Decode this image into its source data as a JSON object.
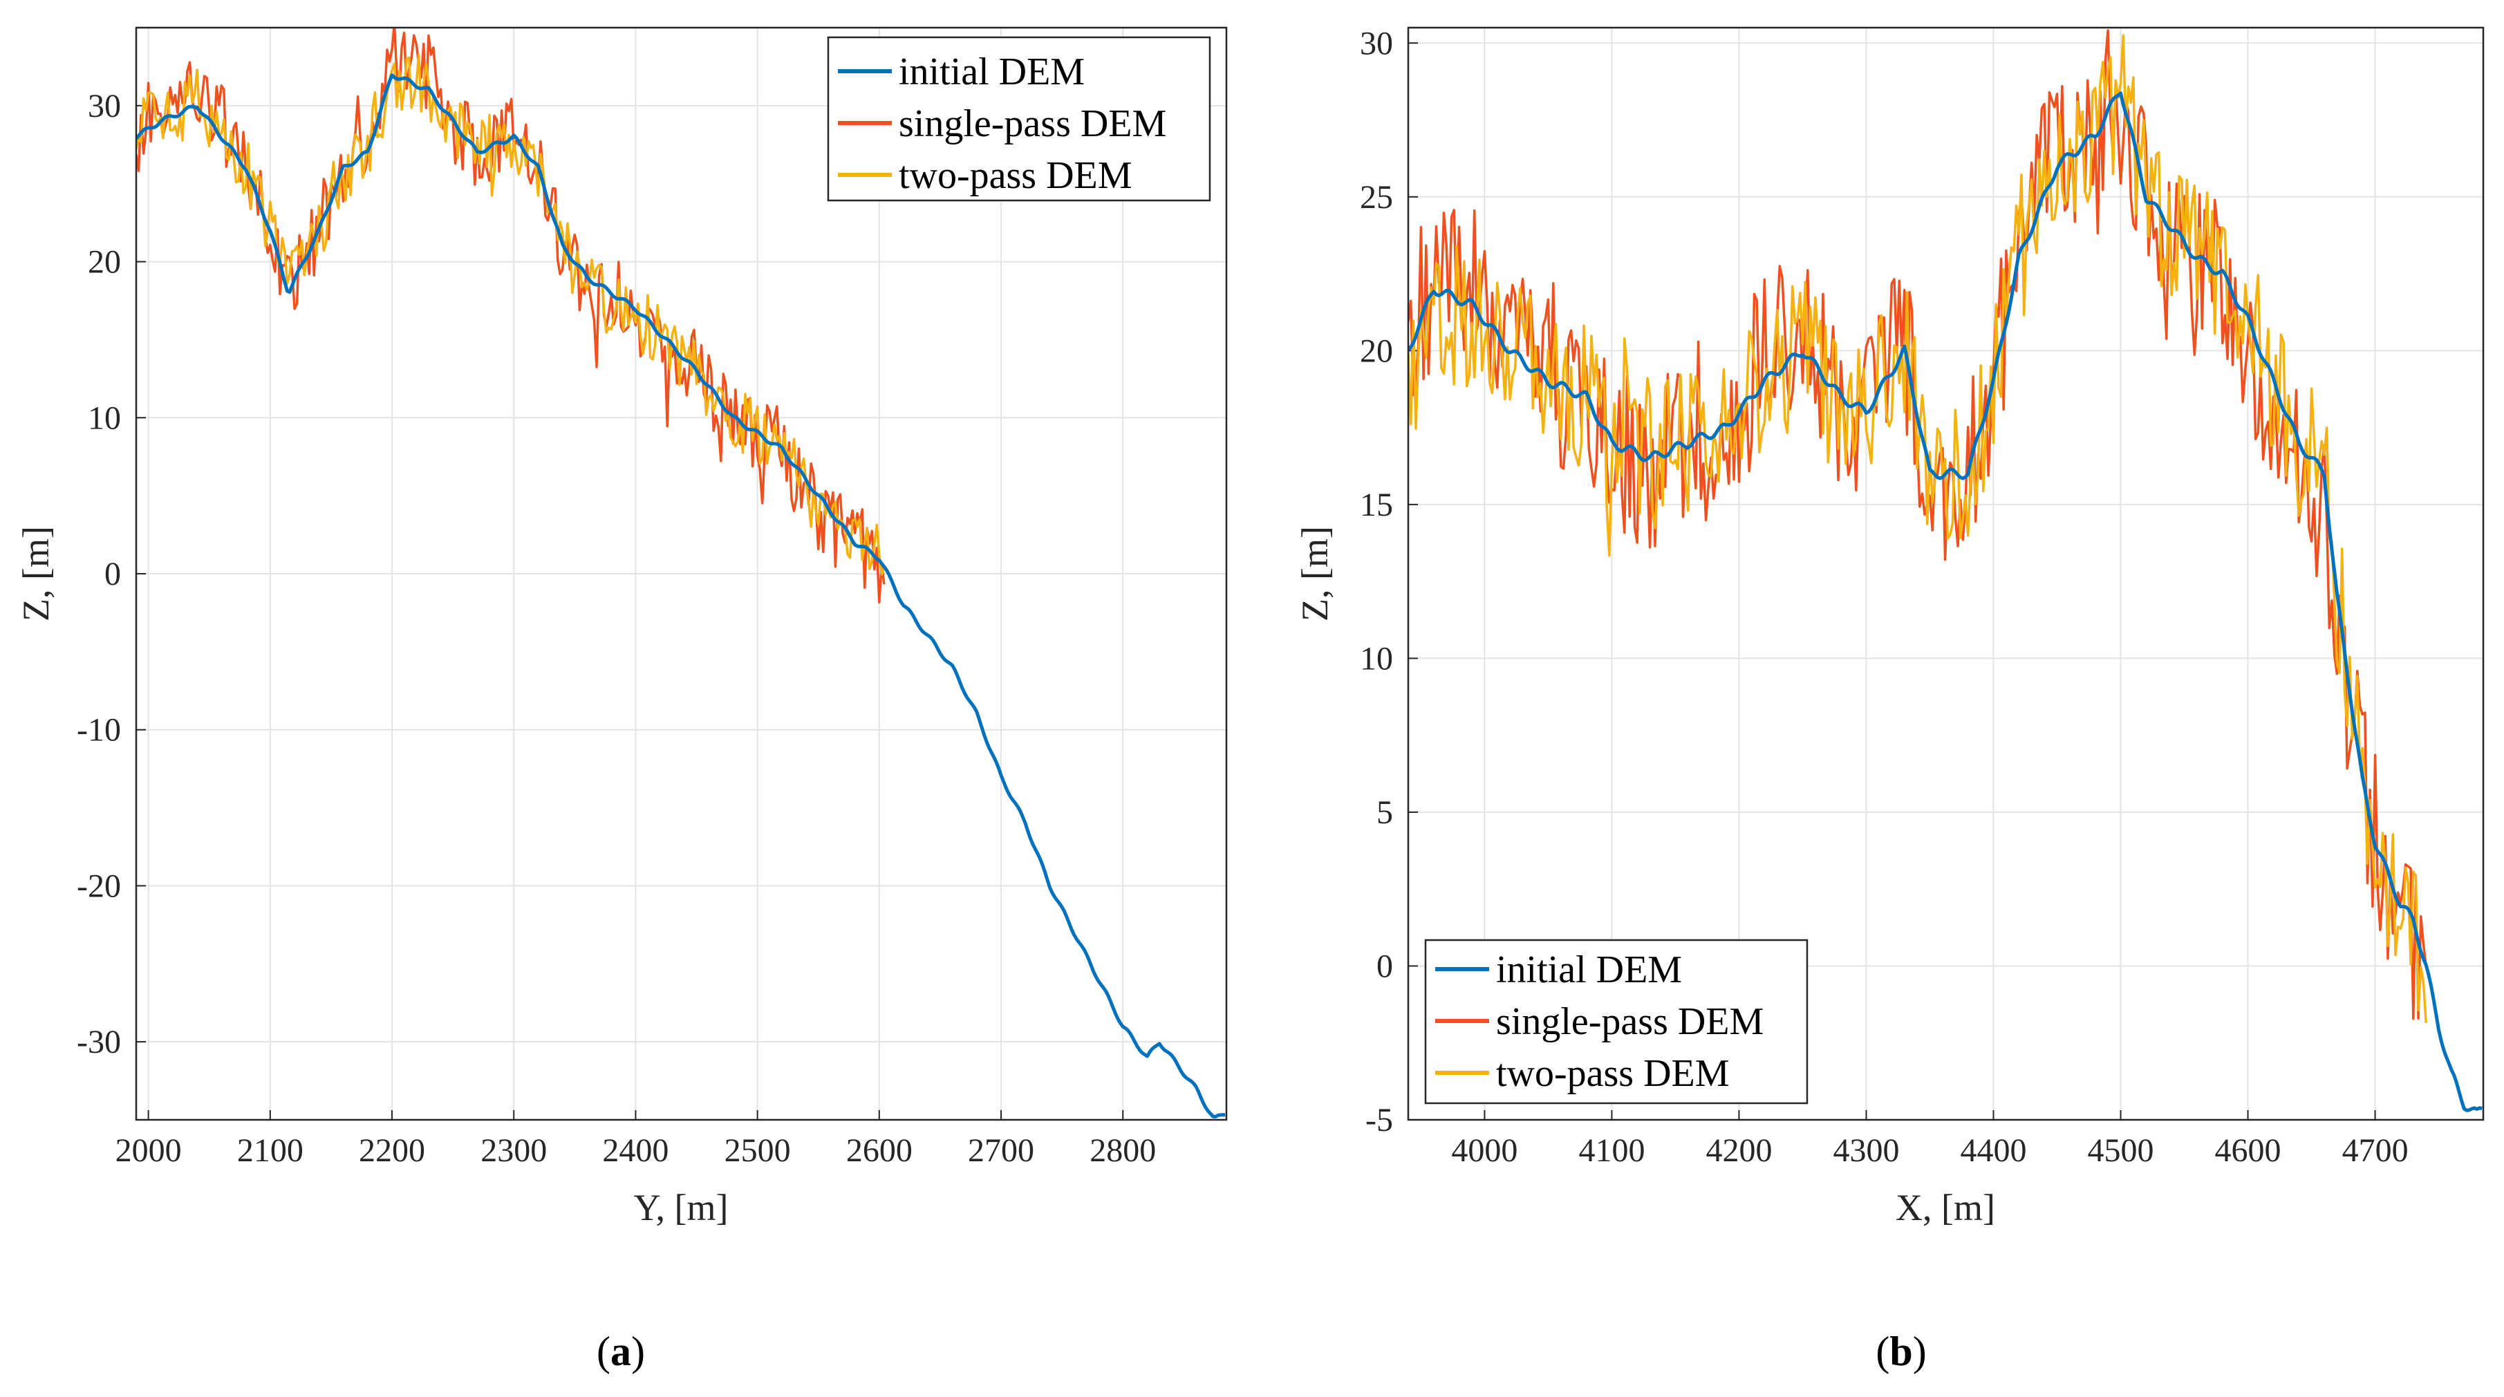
{
  "figure": {
    "panel_a_label": "a",
    "panel_b_label": "b"
  },
  "colors": {
    "initial": "#0072BD",
    "single": "#F0501E",
    "two": "#F5B10F"
  },
  "chart_data": [
    {
      "type": "line",
      "panel": "a",
      "title": "",
      "xlabel": "Y, [m]",
      "ylabel": "Z, [m]",
      "xlim": [
        1990,
        2885
      ],
      "ylim": [
        -35,
        35
      ],
      "xticks": [
        2000,
        2100,
        2200,
        2300,
        2400,
        2500,
        2600,
        2700,
        2800
      ],
      "yticks": [
        -30,
        -20,
        -10,
        0,
        10,
        20,
        30
      ],
      "grid": true,
      "legend_position": "top-right",
      "noise_amplitude": 2.2,
      "series": [
        {
          "name": "initial DEM",
          "color_key": "initial",
          "x": [
            1990,
            2010,
            2040,
            2060,
            2080,
            2100,
            2115,
            2140,
            2160,
            2180,
            2200,
            2230,
            2250,
            2270,
            2300,
            2320,
            2340,
            2360,
            2380,
            2400,
            2450,
            2480,
            2500,
            2520,
            2540,
            2560,
            2580,
            2600,
            2620,
            2640,
            2660,
            2680,
            2700,
            2720,
            2740,
            2760,
            2780,
            2800,
            2820,
            2830,
            2840,
            2860,
            2875,
            2885
          ],
          "y": [
            28,
            29,
            30,
            28,
            26,
            22,
            18,
            22,
            26,
            27,
            32,
            31,
            29,
            27,
            28,
            26,
            21,
            19,
            18,
            17,
            13,
            10,
            9,
            8,
            6,
            4,
            2,
            1,
            -2,
            -4,
            -6,
            -9,
            -13,
            -16,
            -20,
            -23,
            -26,
            -29,
            -31,
            -30,
            -31,
            -33,
            -35,
            -34.5
          ]
        },
        {
          "name": "single-pass DEM",
          "color_key": "single",
          "x": [
            1990,
            2010,
            2040,
            2060,
            2080,
            2100,
            2115,
            2140,
            2160,
            2180,
            2200,
            2230,
            2250,
            2270,
            2300,
            2320,
            2340,
            2360,
            2380,
            2400,
            2450,
            2480,
            2500,
            2520,
            2540,
            2560,
            2580,
            2600,
            2605
          ],
          "y": [
            28,
            30,
            31,
            29,
            26,
            22,
            18,
            22,
            26,
            27,
            33,
            32,
            29,
            27,
            29,
            26,
            21,
            18,
            17,
            16,
            13,
            10,
            9,
            8,
            5,
            3,
            2,
            1,
            0
          ]
        },
        {
          "name": "two-pass DEM",
          "color_key": "two",
          "x": [
            1990,
            2010,
            2040,
            2060,
            2080,
            2100,
            2115,
            2140,
            2160,
            2180,
            2200,
            2230,
            2250,
            2270,
            2300,
            2320,
            2340,
            2360,
            2380,
            2400,
            2450,
            2480,
            2500,
            2520,
            2540,
            2560,
            2580,
            2600,
            2605
          ],
          "y": [
            28,
            29.5,
            30,
            28.5,
            26,
            22,
            18.5,
            22,
            26,
            27,
            32,
            31,
            29,
            27,
            28,
            26,
            21,
            18.5,
            17.5,
            16.5,
            13,
            10,
            9,
            8,
            5.5,
            3.5,
            2,
            1,
            0.5
          ]
        }
      ]
    },
    {
      "type": "line",
      "panel": "b",
      "title": "",
      "xlabel": "X, [m]",
      "ylabel": "Z, [m]",
      "xlim": [
        3940,
        4785
      ],
      "ylim": [
        -5,
        30.5
      ],
      "xticks": [
        4000,
        4100,
        4200,
        4300,
        4400,
        4500,
        4600,
        4700
      ],
      "yticks": [
        -5,
        0,
        5,
        10,
        15,
        20,
        25,
        30
      ],
      "grid": true,
      "legend_position": "bottom-left",
      "noise_amplitude": 2.5,
      "series": [
        {
          "name": "initial DEM",
          "color_key": "initial",
          "x": [
            3940,
            3960,
            3990,
            4020,
            4050,
            4080,
            4100,
            4130,
            4160,
            4190,
            4220,
            4250,
            4280,
            4300,
            4330,
            4350,
            4380,
            4400,
            4420,
            4450,
            4480,
            4500,
            4520,
            4540,
            4560,
            4580,
            4600,
            4620,
            4640,
            4660,
            4670,
            4680,
            4690,
            4700,
            4710,
            4720,
            4730,
            4740,
            4750,
            4760,
            4770,
            4780,
            4785
          ],
          "y": [
            20,
            22,
            21.5,
            20,
            19,
            18.5,
            17,
            16.5,
            17,
            17.5,
            19,
            20,
            18.5,
            18,
            20,
            16,
            16,
            19,
            23,
            26,
            27,
            28.5,
            25,
            24,
            23,
            22.5,
            21,
            19,
            17,
            16,
            12,
            9,
            6,
            4,
            3,
            2,
            1.5,
            0,
            -2,
            -3.5,
            -4.5,
            -4.8,
            -4.6
          ]
        },
        {
          "name": "single-pass DEM",
          "color_key": "single",
          "x": [
            3940,
            3960,
            3990,
            4020,
            4050,
            4080,
            4100,
            4130,
            4160,
            4190,
            4220,
            4250,
            4280,
            4300,
            4330,
            4350,
            4380,
            4400,
            4420,
            4450,
            4480,
            4500,
            4520,
            4540,
            4560,
            4580,
            4600,
            4620,
            4640,
            4660,
            4670,
            4680,
            4690,
            4700,
            4710,
            4720,
            4730,
            4740
          ],
          "y": [
            20,
            22.5,
            22,
            20,
            19,
            18,
            16.5,
            16,
            17,
            17.5,
            19.5,
            20.5,
            18.5,
            18,
            20.5,
            15.5,
            16,
            19,
            23,
            26.5,
            26,
            27.5,
            25,
            23.5,
            22.5,
            22,
            20.5,
            18.5,
            16.5,
            15,
            11,
            8,
            6,
            4,
            3,
            2,
            1,
            -0.5
          ]
        },
        {
          "name": "two-pass DEM",
          "color_key": "two",
          "x": [
            3940,
            3960,
            3990,
            4020,
            4050,
            4080,
            4100,
            4130,
            4160,
            4190,
            4220,
            4250,
            4280,
            4300,
            4330,
            4350,
            4380,
            4400,
            4420,
            4450,
            4480,
            4500,
            4520,
            4540,
            4560,
            4580,
            4600,
            4620,
            4640,
            4660,
            4670,
            4680,
            4690,
            4700,
            4710,
            4720,
            4730,
            4740
          ],
          "y": [
            19,
            21.5,
            21,
            20,
            19,
            18.5,
            17,
            16.5,
            17,
            17.5,
            19,
            20,
            18.5,
            18,
            20,
            16,
            16,
            19,
            23,
            26,
            27,
            28.5,
            25,
            24,
            23,
            22.5,
            21,
            19,
            17,
            16,
            12,
            9,
            6.5,
            4.5,
            3,
            2,
            1.5,
            0
          ]
        }
      ]
    }
  ]
}
